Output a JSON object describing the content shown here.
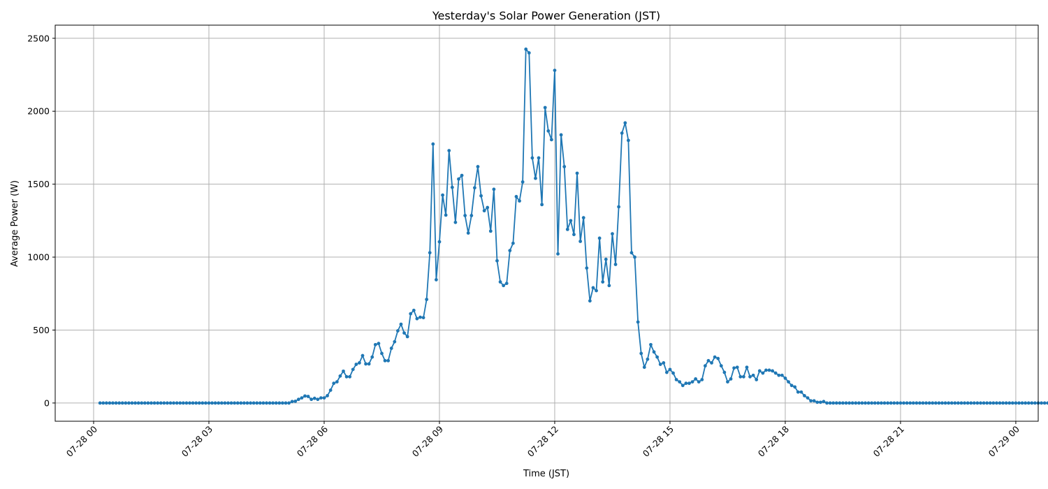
{
  "chart_data": {
    "type": "line",
    "title": "Yesterday's Solar Power Generation (JST)",
    "xlabel": "Time (JST)",
    "ylabel": "Average Power (W)",
    "x_ticks": [
      "07-28 00",
      "07-28 03",
      "07-28 06",
      "07-28 09",
      "07-28 12",
      "07-28 15",
      "07-28 18",
      "07-28 21",
      "07-29 00"
    ],
    "y_ticks": [
      "0",
      "500",
      "1000",
      "1500",
      "2000",
      "2500"
    ],
    "ylim": [
      -125,
      2590
    ],
    "xlim": [
      "07-27 23:00",
      "07-29 00:35"
    ],
    "grid": true,
    "color": "#1f77b4",
    "series": [
      {
        "interval": "5 min",
        "x_start": "07-28 00:10",
        "values": [
          0,
          0,
          0,
          0,
          0,
          0,
          0,
          0,
          0,
          0,
          0,
          0,
          0,
          0,
          0,
          0,
          0,
          0,
          0,
          0,
          0,
          0,
          0,
          0,
          0,
          0,
          0,
          0,
          0,
          0,
          0,
          0,
          0,
          0,
          0,
          0,
          0,
          0,
          0,
          0,
          0,
          0,
          0,
          0,
          0,
          0,
          0,
          0,
          0,
          0,
          0,
          0,
          0,
          0,
          0,
          0,
          0,
          0,
          0,
          0,
          10,
          12,
          25,
          35,
          48,
          45,
          25,
          32,
          25,
          35,
          35,
          50,
          88,
          135,
          145,
          185,
          218,
          180,
          180,
          230,
          265,
          275,
          325,
          268,
          268,
          315,
          400,
          408,
          340,
          290,
          290,
          375,
          420,
          495,
          540,
          480,
          455,
          612,
          635,
          578,
          588,
          585,
          710,
          1030,
          1775,
          845,
          1105,
          1425,
          1288,
          1730,
          1478,
          1238,
          1535,
          1560,
          1285,
          1165,
          1285,
          1475,
          1620,
          1420,
          1318,
          1340,
          1178,
          1465,
          975,
          830,
          805,
          820,
          1045,
          1095,
          1415,
          1385,
          1515,
          2425,
          2400,
          1680,
          1540,
          1680,
          1360,
          2025,
          1865,
          1805,
          2280,
          1022,
          1838,
          1620,
          1190,
          1250,
          1155,
          1575,
          1108,
          1270,
          925,
          700,
          790,
          770,
          1130,
          830,
          985,
          805,
          1160,
          950,
          1345,
          1850,
          1920,
          1800,
          1030,
          1000,
          555,
          340,
          245,
          300,
          400,
          350,
          315,
          265,
          275,
          210,
          230,
          205,
          160,
          145,
          120,
          135,
          135,
          145,
          165,
          145,
          160,
          255,
          290,
          275,
          315,
          305,
          255,
          210,
          145,
          165,
          240,
          245,
          180,
          180,
          245,
          180,
          190,
          160,
          220,
          205,
          225,
          225,
          220,
          205,
          190,
          190,
          170,
          145,
          120,
          110,
          75,
          75,
          50,
          35,
          15,
          15,
          5,
          5,
          10,
          0,
          0,
          0,
          0,
          0,
          0,
          0,
          0,
          0,
          0,
          0,
          0,
          0,
          0,
          0,
          0,
          0,
          0,
          0,
          0,
          0,
          0,
          0,
          0,
          0,
          0,
          0,
          0,
          0,
          0,
          0,
          0,
          0,
          0,
          0,
          0,
          0,
          0,
          0,
          0,
          0,
          0,
          0,
          0,
          0,
          0,
          0,
          0,
          0,
          0,
          0,
          0,
          0,
          0,
          0,
          0,
          0,
          0,
          0,
          0,
          0,
          0,
          0,
          0,
          0,
          0,
          0,
          0,
          0,
          0,
          0,
          0,
          0
        ]
      }
    ]
  }
}
